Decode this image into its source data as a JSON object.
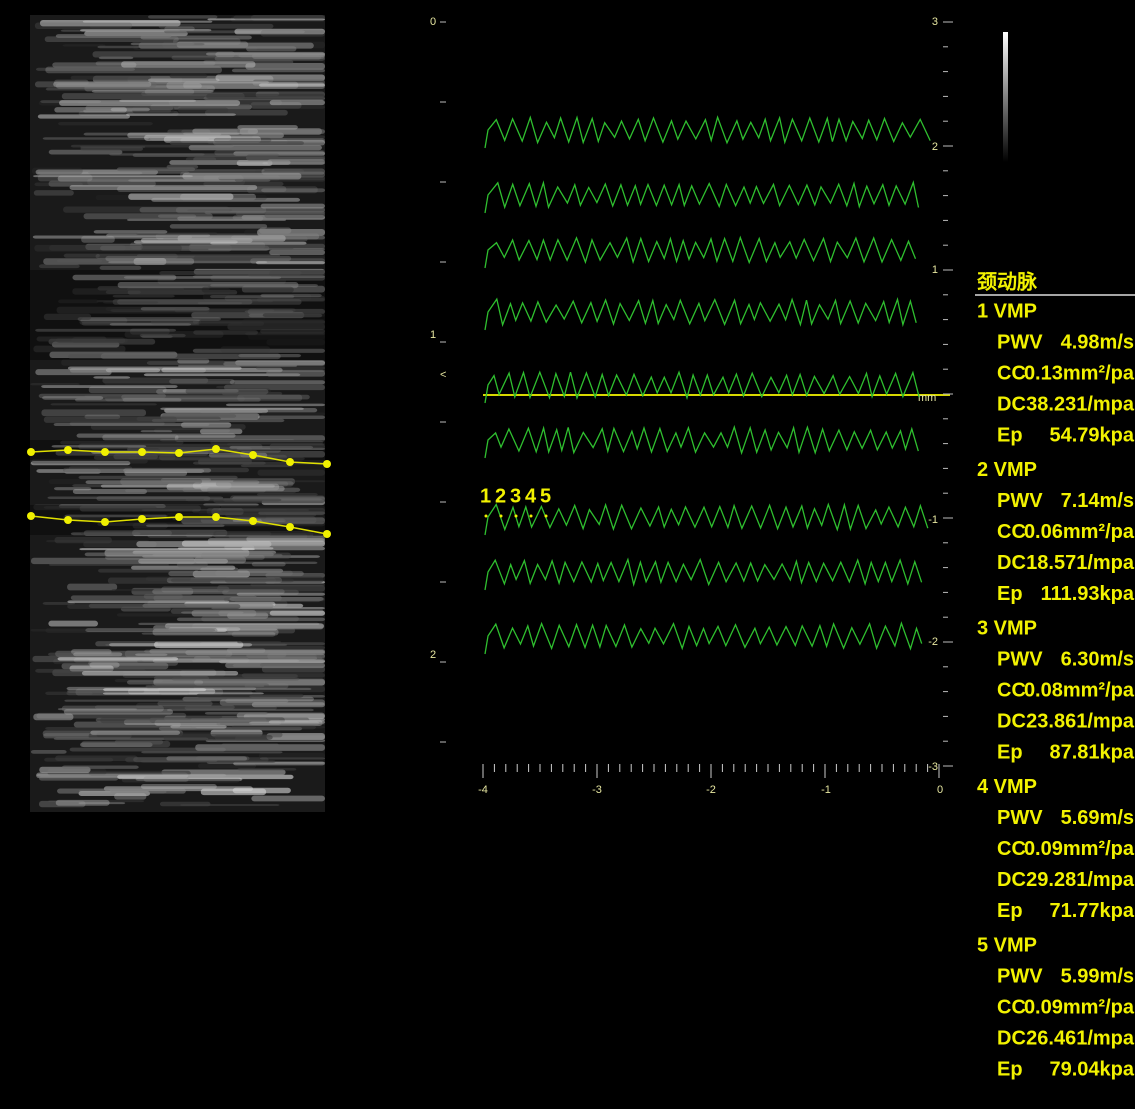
{
  "left_axis": {
    "ticks": [
      "0",
      "1",
      "2"
    ],
    "marker": "<"
  },
  "right_axis": {
    "ticks": [
      "3",
      "2",
      "1",
      "-1",
      "-2",
      "-3"
    ],
    "unit": "mm"
  },
  "x_axis": {
    "ticks": [
      "-4",
      "-3",
      "-2",
      "-1",
      "0"
    ]
  },
  "beat_labels": [
    "1",
    "2",
    "3",
    "4",
    "5"
  ],
  "panel": {
    "title": "颈动脉",
    "measurements": [
      {
        "name": "1 VMP",
        "rows": [
          [
            "PWV",
            "4.98m/s"
          ],
          [
            "CC",
            "0.13mm²/pa"
          ],
          [
            "DC",
            "38.231/mpa"
          ],
          [
            "Ep",
            "54.79kpa"
          ]
        ]
      },
      {
        "name": "2 VMP",
        "rows": [
          [
            "PWV",
            "7.14m/s"
          ],
          [
            "CC",
            "0.06mm²/pa"
          ],
          [
            "DC",
            "18.571/mpa"
          ],
          [
            "Ep",
            "111.93kpa"
          ]
        ]
      },
      {
        "name": "3 VMP",
        "rows": [
          [
            "PWV",
            "6.30m/s"
          ],
          [
            "CC",
            "0.08mm²/pa"
          ],
          [
            "DC",
            "23.861/mpa"
          ],
          [
            "Ep",
            "87.81kpa"
          ]
        ]
      },
      {
        "name": "4 VMP",
        "rows": [
          [
            "PWV",
            "5.69m/s"
          ],
          [
            "CC",
            "0.09mm²/pa"
          ],
          [
            "DC",
            "29.281/mpa"
          ],
          [
            "Ep",
            "71.77kpa"
          ]
        ]
      },
      {
        "name": "5 VMP",
        "rows": [
          [
            "PWV",
            "5.99m/s"
          ],
          [
            "CC",
            "0.09mm²/pa"
          ],
          [
            "DC",
            "26.461/mpa"
          ],
          [
            "Ep",
            "79.04kpa"
          ]
        ]
      }
    ]
  }
}
